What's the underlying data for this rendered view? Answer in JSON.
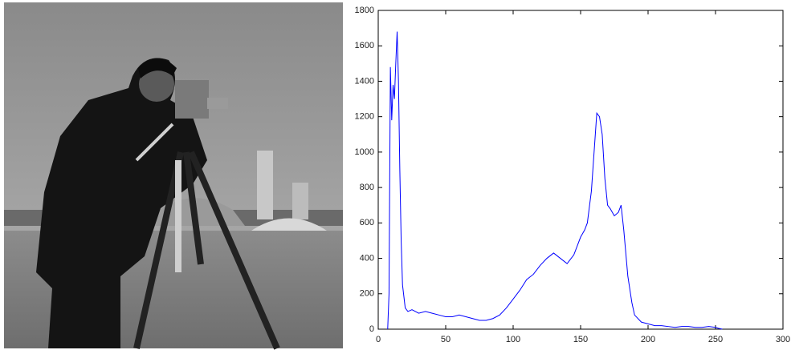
{
  "chart_data": {
    "type": "line",
    "x": [
      7,
      8,
      9,
      10,
      11,
      12,
      13,
      14,
      15,
      16,
      17,
      18,
      20,
      22,
      25,
      30,
      35,
      40,
      45,
      50,
      55,
      60,
      65,
      70,
      75,
      80,
      85,
      90,
      95,
      100,
      105,
      110,
      115,
      120,
      125,
      130,
      135,
      140,
      145,
      150,
      153,
      155,
      158,
      160,
      162,
      164,
      166,
      168,
      170,
      172,
      175,
      178,
      180,
      182,
      185,
      188,
      190,
      195,
      200,
      205,
      210,
      215,
      220,
      225,
      230,
      235,
      240,
      245,
      250,
      252,
      255
    ],
    "series": [
      {
        "color": "#0000ff",
        "values": [
          0,
          200,
          1480,
          1180,
          1380,
          1300,
          1500,
          1680,
          1400,
          900,
          500,
          250,
          120,
          100,
          110,
          90,
          100,
          90,
          80,
          70,
          70,
          80,
          70,
          60,
          50,
          50,
          60,
          80,
          120,
          170,
          220,
          280,
          310,
          360,
          400,
          430,
          400,
          370,
          420,
          520,
          560,
          600,
          780,
          1000,
          1220,
          1200,
          1100,
          850,
          700,
          680,
          640,
          660,
          700,
          560,
          300,
          150,
          80,
          40,
          30,
          20,
          20,
          15,
          10,
          15,
          15,
          10,
          10,
          15,
          10,
          5,
          0
        ]
      }
    ],
    "xlim": [
      0,
      300
    ],
    "xticks": [
      0,
      50,
      100,
      150,
      200,
      250,
      300
    ],
    "ylim": [
      0,
      1800
    ],
    "yticks": [
      0,
      200,
      400,
      600,
      800,
      1000,
      1200,
      1400,
      1600,
      1800
    ]
  }
}
